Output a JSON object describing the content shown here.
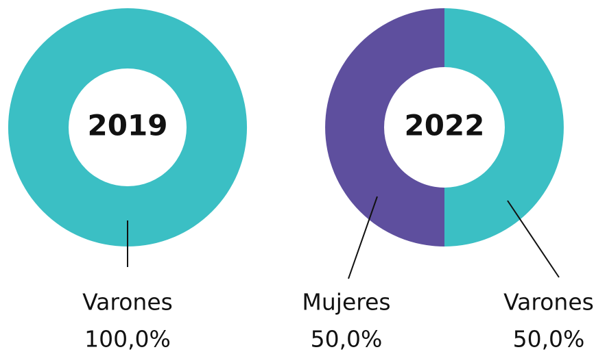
{
  "chart_data": [
    {
      "type": "donut",
      "title": "2019",
      "categories": [
        "Varones"
      ],
      "values": [
        100
      ],
      "value_labels": [
        "100,0%"
      ],
      "colors": [
        "#3bbfc4"
      ]
    },
    {
      "type": "donut",
      "title": "2022",
      "categories": [
        "Varones",
        "Mujeres"
      ],
      "values": [
        50,
        50
      ],
      "value_labels": [
        "50,0%",
        "50,0%"
      ],
      "colors": [
        "#3bbfc4",
        "#5e4f9e"
      ]
    }
  ]
}
